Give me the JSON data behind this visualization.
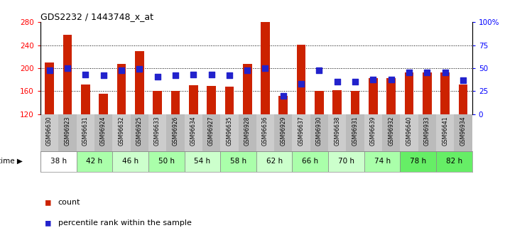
{
  "title": "GDS2232 / 1443748_x_at",
  "samples": [
    "GSM96630",
    "GSM96923",
    "GSM96631",
    "GSM96924",
    "GSM96632",
    "GSM96925",
    "GSM96633",
    "GSM96926",
    "GSM96634",
    "GSM96927",
    "GSM96635",
    "GSM96928",
    "GSM96636",
    "GSM96929",
    "GSM96637",
    "GSM96930",
    "GSM96638",
    "GSM96931",
    "GSM96639",
    "GSM96932",
    "GSM96640",
    "GSM96933",
    "GSM96641",
    "GSM96934"
  ],
  "count_values": [
    210,
    258,
    172,
    156,
    207,
    230,
    161,
    161,
    170,
    169,
    168,
    208,
    280,
    152,
    241,
    161,
    162,
    161,
    183,
    183,
    192,
    192,
    192,
    172
  ],
  "percentile_values": [
    48,
    50,
    43,
    42,
    48,
    49,
    41,
    42,
    43,
    43,
    42,
    48,
    50,
    20,
    33,
    48,
    35,
    35,
    38,
    38,
    45,
    45,
    45,
    37
  ],
  "time_groups": [
    {
      "label": "38 h",
      "indices": [
        0,
        1
      ]
    },
    {
      "label": "42 h",
      "indices": [
        2,
        3
      ]
    },
    {
      "label": "46 h",
      "indices": [
        4,
        5
      ]
    },
    {
      "label": "50 h",
      "indices": [
        6,
        7
      ]
    },
    {
      "label": "54 h",
      "indices": [
        8,
        9
      ]
    },
    {
      "label": "58 h",
      "indices": [
        10,
        11
      ]
    },
    {
      "label": "62 h",
      "indices": [
        12,
        13
      ]
    },
    {
      "label": "66 h",
      "indices": [
        14,
        15
      ]
    },
    {
      "label": "70 h",
      "indices": [
        16,
        17
      ]
    },
    {
      "label": "74 h",
      "indices": [
        18,
        19
      ]
    },
    {
      "label": "78 h",
      "indices": [
        20,
        21
      ]
    },
    {
      "label": "82 h",
      "indices": [
        22,
        23
      ]
    }
  ],
  "ylim_left": [
    120,
    280
  ],
  "ylim_right": [
    0,
    100
  ],
  "yticks_left": [
    120,
    160,
    200,
    240,
    280
  ],
  "yticks_right": [
    0,
    25,
    50,
    75,
    100
  ],
  "bar_color": "#cc2200",
  "dot_color": "#2222cc",
  "bar_bottom": 120,
  "bar_width": 0.5,
  "dot_size": 28,
  "label_row_colors": [
    "#cccccc",
    "#dddddd"
  ],
  "time_row_colors_even": "#ffffff",
  "time_row_colors_odd": "#aaffaa",
  "time_row_color_last": "#44ee44",
  "legend_count_label": "count",
  "legend_pct_label": "percentile rank within the sample"
}
